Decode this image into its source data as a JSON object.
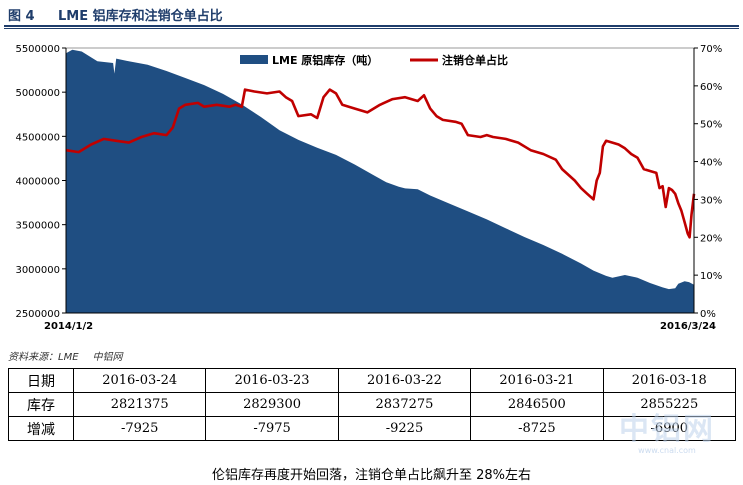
{
  "header": {
    "figure_no": "图 4",
    "title": "LME 铝库存和注销仓单占比"
  },
  "source": {
    "label": "资料来源：LME",
    "org": "中铝网"
  },
  "caption": "伦铝库存再度开始回落，注销仓单占比飙升至 28%左右",
  "watermark": {
    "text": "中铝网",
    "url": "www.cnal.com"
  },
  "table": {
    "rows": [
      {
        "label": "日期",
        "cells": [
          "2016-03-24",
          "2016-03-23",
          "2016-03-22",
          "2016-03-21",
          "2016-03-18"
        ]
      },
      {
        "label": "库存",
        "cells": [
          "2821375",
          "2829300",
          "2837275",
          "2846500",
          "2855225"
        ]
      },
      {
        "label": "增减",
        "cells": [
          "-7925",
          "-7975",
          "-9225",
          "-8725",
          "-6900"
        ]
      }
    ]
  },
  "chart_data": {
    "type": "area",
    "title": "",
    "x_start_label": "2014/1/2",
    "x_end_label": "2016/3/24",
    "left_axis": {
      "ylim": [
        2500000,
        5500000
      ],
      "ticks": [
        2500000,
        3000000,
        3500000,
        4000000,
        4500000,
        5000000,
        5500000
      ],
      "tick_labels": [
        "2500000",
        "3000000",
        "3500000",
        "4000000",
        "4500000",
        "5000000",
        "5500000"
      ]
    },
    "right_axis": {
      "ylim": [
        0,
        70
      ],
      "ticks": [
        0,
        10,
        20,
        30,
        40,
        50,
        60,
        70
      ],
      "tick_labels": [
        "0%",
        "10%",
        "20%",
        "30%",
        "40%",
        "50%",
        "60%",
        "70%"
      ]
    },
    "legend_position": "top-center",
    "series": [
      {
        "name": "LME 原铝库存（吨）",
        "kind": "area",
        "axis": "left",
        "color": "#1f4e82",
        "points": [
          [
            0,
            5440000
          ],
          [
            0.01,
            5480000
          ],
          [
            0.025,
            5460000
          ],
          [
            0.05,
            5350000
          ],
          [
            0.075,
            5330000
          ],
          [
            0.077,
            5210000
          ],
          [
            0.08,
            5380000
          ],
          [
            0.1,
            5350000
          ],
          [
            0.13,
            5310000
          ],
          [
            0.16,
            5240000
          ],
          [
            0.19,
            5160000
          ],
          [
            0.22,
            5080000
          ],
          [
            0.25,
            4980000
          ],
          [
            0.28,
            4860000
          ],
          [
            0.31,
            4720000
          ],
          [
            0.34,
            4570000
          ],
          [
            0.37,
            4460000
          ],
          [
            0.4,
            4370000
          ],
          [
            0.43,
            4290000
          ],
          [
            0.46,
            4180000
          ],
          [
            0.49,
            4060000
          ],
          [
            0.51,
            3980000
          ],
          [
            0.53,
            3930000
          ],
          [
            0.54,
            3910000
          ],
          [
            0.56,
            3900000
          ],
          [
            0.58,
            3830000
          ],
          [
            0.61,
            3740000
          ],
          [
            0.64,
            3650000
          ],
          [
            0.67,
            3560000
          ],
          [
            0.7,
            3460000
          ],
          [
            0.73,
            3360000
          ],
          [
            0.76,
            3270000
          ],
          [
            0.79,
            3170000
          ],
          [
            0.82,
            3060000
          ],
          [
            0.84,
            2980000
          ],
          [
            0.86,
            2920000
          ],
          [
            0.87,
            2900000
          ],
          [
            0.89,
            2930000
          ],
          [
            0.91,
            2900000
          ],
          [
            0.93,
            2840000
          ],
          [
            0.95,
            2790000
          ],
          [
            0.96,
            2770000
          ],
          [
            0.97,
            2780000
          ],
          [
            0.975,
            2830000
          ],
          [
            0.985,
            2860000
          ],
          [
            0.992,
            2850000
          ],
          [
            1.0,
            2820000
          ]
        ]
      },
      {
        "name": "注销仓单占比",
        "kind": "line",
        "axis": "right",
        "color": "#c00000",
        "points": [
          [
            0,
            43
          ],
          [
            0.02,
            42.5
          ],
          [
            0.04,
            44.5
          ],
          [
            0.06,
            46
          ],
          [
            0.08,
            45.5
          ],
          [
            0.1,
            45
          ],
          [
            0.12,
            46.5
          ],
          [
            0.14,
            47.5
          ],
          [
            0.16,
            47
          ],
          [
            0.17,
            49
          ],
          [
            0.18,
            54
          ],
          [
            0.19,
            55
          ],
          [
            0.21,
            55.5
          ],
          [
            0.22,
            54.5
          ],
          [
            0.24,
            55
          ],
          [
            0.26,
            54.5
          ],
          [
            0.27,
            55
          ],
          [
            0.28,
            54.5
          ],
          [
            0.285,
            59
          ],
          [
            0.3,
            58.5
          ],
          [
            0.32,
            58
          ],
          [
            0.34,
            58.5
          ],
          [
            0.35,
            57
          ],
          [
            0.36,
            56
          ],
          [
            0.37,
            52
          ],
          [
            0.39,
            52.5
          ],
          [
            0.4,
            51.5
          ],
          [
            0.41,
            57
          ],
          [
            0.42,
            59
          ],
          [
            0.43,
            58
          ],
          [
            0.44,
            55
          ],
          [
            0.46,
            54
          ],
          [
            0.48,
            53
          ],
          [
            0.5,
            55
          ],
          [
            0.52,
            56.5
          ],
          [
            0.54,
            57
          ],
          [
            0.56,
            56
          ],
          [
            0.57,
            57.5
          ],
          [
            0.58,
            54
          ],
          [
            0.59,
            52
          ],
          [
            0.6,
            51
          ],
          [
            0.62,
            50.5
          ],
          [
            0.63,
            50
          ],
          [
            0.64,
            47
          ],
          [
            0.66,
            46.5
          ],
          [
            0.67,
            47
          ],
          [
            0.68,
            46.5
          ],
          [
            0.7,
            46
          ],
          [
            0.72,
            45
          ],
          [
            0.74,
            43
          ],
          [
            0.76,
            42
          ],
          [
            0.78,
            40.5
          ],
          [
            0.79,
            38
          ],
          [
            0.81,
            35
          ],
          [
            0.82,
            33
          ],
          [
            0.83,
            31.5
          ],
          [
            0.84,
            30
          ],
          [
            0.845,
            35
          ],
          [
            0.85,
            37
          ],
          [
            0.855,
            44
          ],
          [
            0.86,
            45.5
          ],
          [
            0.87,
            45
          ],
          [
            0.88,
            44.5
          ],
          [
            0.89,
            43.5
          ],
          [
            0.9,
            42
          ],
          [
            0.91,
            41
          ],
          [
            0.92,
            38
          ],
          [
            0.93,
            37.5
          ],
          [
            0.94,
            37
          ],
          [
            0.945,
            33
          ],
          [
            0.95,
            33.5
          ],
          [
            0.955,
            28
          ],
          [
            0.96,
            33
          ],
          [
            0.965,
            32.5
          ],
          [
            0.97,
            31.5
          ],
          [
            0.975,
            29
          ],
          [
            0.98,
            27
          ],
          [
            0.985,
            24
          ],
          [
            0.99,
            21
          ],
          [
            0.993,
            20
          ],
          [
            0.996,
            26
          ],
          [
            1.0,
            31.5
          ]
        ]
      }
    ]
  }
}
